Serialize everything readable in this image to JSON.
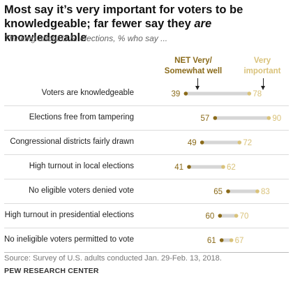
{
  "title_parts": {
    "line1": "Most say it’s very important for voters to be",
    "line2_a": "knowledgeable; far fewer say they ",
    "line2_em": "are",
    "line2_b": " knowledgeable"
  },
  "subtitle": "Thinking about U.S. elections, % who say ...",
  "colors": {
    "net": "#8a6a19",
    "very_important": "#d9c27a",
    "connector": "#d6d6d6"
  },
  "chart_data": {
    "type": "dot_plot",
    "title": "Most say it’s very important for voters to be knowledgeable; far fewer say they are knowledgeable",
    "subtitle": "Thinking about U.S. elections, % who say ...",
    "xlim": [
      35,
      95
    ],
    "legend": [
      "NET Very/ Somewhat well",
      "Very important"
    ],
    "legend_placement": "top",
    "legend_lines": {
      "net_1": "NET Very/",
      "net_2": "Somewhat well",
      "vi_1": "Very",
      "vi_2": "important"
    },
    "categories": [
      "Voters are knowledgeable",
      "Elections free from tampering",
      "Congressional districts fairly drawn",
      "High turnout in local elections",
      "No eligible voters denied vote",
      "High turnout in presidential elections",
      "No ineligible voters permitted to vote"
    ],
    "series": [
      {
        "name": "NET Very/ Somewhat well",
        "values": [
          39,
          57,
          49,
          41,
          65,
          60,
          61
        ]
      },
      {
        "name": "Very important",
        "values": [
          78,
          90,
          72,
          62,
          83,
          70,
          67
        ]
      }
    ]
  },
  "footer": {
    "source": "Source: Survey of U.S. adults conducted Jan. 29-Feb. 13, 2018.",
    "org": "PEW RESEARCH CENTER"
  }
}
